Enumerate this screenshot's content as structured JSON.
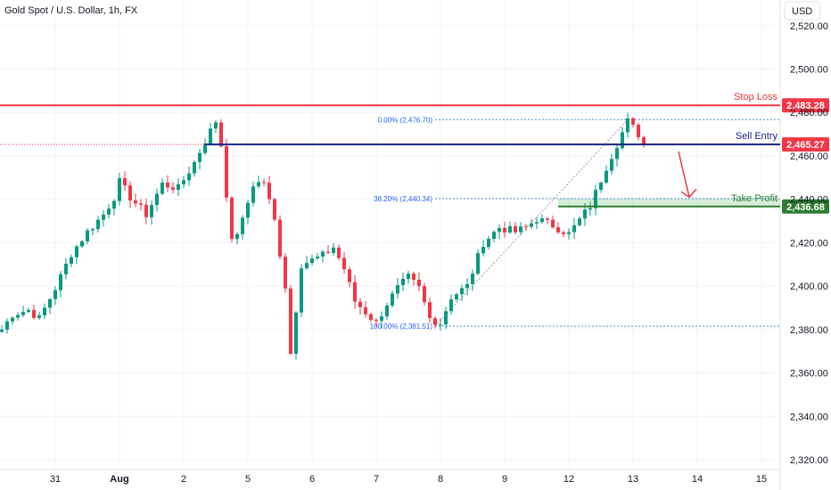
{
  "chart_data": {
    "type": "candlestick",
    "title": "Gold Spot / U.S. Dollar, 1h, FX",
    "currency": "USD",
    "ylim": [
      2312,
      2530
    ],
    "y_ticks": [
      2320,
      2340,
      2360,
      2380,
      2400,
      2420,
      2440,
      2460,
      2480,
      2500,
      2520
    ],
    "y_tick_labels": [
      "2,320.00",
      "2,340.00",
      "2,360.00",
      "2,380.00",
      "2,400.00",
      "2,420.00",
      "2,440.00",
      "2,460.00",
      "2,480.00",
      "2,500.00",
      "2,520.00"
    ],
    "x_ticks": [
      {
        "label": "31",
        "bar": 10
      },
      {
        "label": "Aug",
        "bar": 22
      },
      {
        "label": "2",
        "bar": 34
      },
      {
        "label": "5",
        "bar": 46
      },
      {
        "label": "6",
        "bar": 58
      },
      {
        "label": "7",
        "bar": 70
      },
      {
        "label": "8",
        "bar": 82
      },
      {
        "label": "9",
        "bar": 94
      },
      {
        "label": "12",
        "bar": 106
      },
      {
        "label": "13",
        "bar": 118
      },
      {
        "label": "14",
        "bar": 130
      },
      {
        "label": "15",
        "bar": 142
      }
    ],
    "x_bar_range": [
      0,
      144
    ],
    "up_color": "#089981",
    "down_color": "#f23645",
    "levels": [
      {
        "name": "Stop Loss",
        "value": 2483.28,
        "label": "2,483.28",
        "color": "#f23645",
        "text_color": "#e53935"
      },
      {
        "name": "Sell Entry",
        "value": 2465.27,
        "label": "2,465.27",
        "color": "#1a237e",
        "text_color": "#1a237e",
        "badge_color": "#f23645",
        "start_bar": 38
      },
      {
        "name": "Take Profit",
        "value": 2436.68,
        "label": "2,436.68",
        "color": "#2e7d32",
        "text_color": "#2e7d32",
        "zone_top": 2440.34,
        "zone_start_bar": 104
      }
    ],
    "fib_levels": [
      {
        "label": "0.00% (2,476.70)",
        "value": 2476.7,
        "start_bar": 81
      },
      {
        "label": "38.20% (2,440.34)",
        "value": 2440.34,
        "start_bar": 81
      },
      {
        "label": "100.00% (2,381.51)",
        "value": 2381.51,
        "start_bar": 81
      }
    ],
    "fib_diagonal": {
      "from_bar": 81,
      "from_value": 2381.51,
      "to_bar": 117,
      "to_value": 2476.7
    },
    "arrow": {
      "from_bar": 126.5,
      "from_value": 2462,
      "to_bar": 128.5,
      "to_value": 2441
    },
    "waypoints": [
      [
        0,
        2380
      ],
      [
        2,
        2387
      ],
      [
        5,
        2389
      ],
      [
        7,
        2385
      ],
      [
        10,
        2399
      ],
      [
        13,
        2415
      ],
      [
        16,
        2425
      ],
      [
        19,
        2433
      ],
      [
        21,
        2441
      ],
      [
        22,
        2448
      ],
      [
        24,
        2441
      ],
      [
        27,
        2433
      ],
      [
        30,
        2447
      ],
      [
        33,
        2445
      ],
      [
        36,
        2457
      ],
      [
        38,
        2467
      ],
      [
        40,
        2476
      ],
      [
        41,
        2465
      ],
      [
        43,
        2420
      ],
      [
        45,
        2430
      ],
      [
        47,
        2447
      ],
      [
        49,
        2448
      ],
      [
        51,
        2430
      ],
      [
        53,
        2400
      ],
      [
        54,
        2369
      ],
      [
        56,
        2410
      ],
      [
        58,
        2412
      ],
      [
        60,
        2414
      ],
      [
        62,
        2418
      ],
      [
        64,
        2408
      ],
      [
        66,
        2393
      ],
      [
        68,
        2388
      ],
      [
        70,
        2383
      ],
      [
        72,
        2392
      ],
      [
        74,
        2399
      ],
      [
        76,
        2404
      ],
      [
        78,
        2399
      ],
      [
        80,
        2385
      ],
      [
        82,
        2383
      ],
      [
        84,
        2395
      ],
      [
        87,
        2400
      ],
      [
        90,
        2420
      ],
      [
        93,
        2427
      ],
      [
        96,
        2425
      ],
      [
        98,
        2427
      ],
      [
        100,
        2431
      ],
      [
        103,
        2428
      ],
      [
        106,
        2424
      ],
      [
        110,
        2437
      ],
      [
        113,
        2455
      ],
      [
        117,
        2476
      ],
      [
        119,
        2470
      ],
      [
        120,
        2465
      ]
    ]
  }
}
